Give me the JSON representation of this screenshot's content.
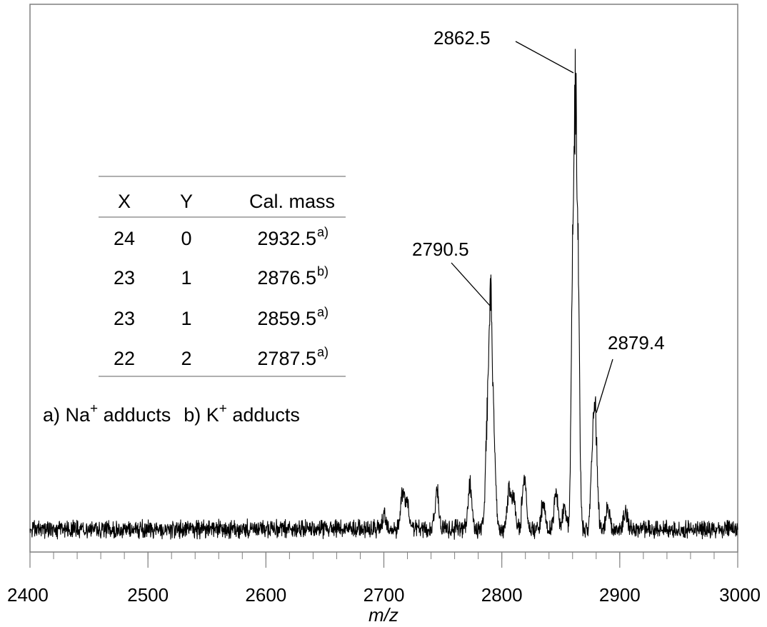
{
  "chart_data": {
    "type": "line",
    "xlabel": "m/z",
    "ylabel": "",
    "xlim": [
      2400,
      3000
    ],
    "x_ticks_major": [
      2400,
      2500,
      2600,
      2700,
      2800,
      2900,
      3000
    ],
    "x_minor_step": 20,
    "x_tick_labels": [
      "2400",
      "2500",
      "2600",
      "2700",
      "2800",
      "2900",
      "3000"
    ],
    "ylim": [
      0,
      100
    ],
    "grid": false,
    "baseline_level": 6,
    "noise_amplitude": 3,
    "series": [
      {
        "peaks": [
          {
            "x": 2700,
            "y": 4
          },
          {
            "x": 2716,
            "y": 10
          },
          {
            "x": 2720,
            "y": 6
          },
          {
            "x": 2745,
            "y": 9
          },
          {
            "x": 2773,
            "y": 11
          },
          {
            "x": 2790.5,
            "y": 47
          },
          {
            "x": 2788,
            "y": 30
          },
          {
            "x": 2793,
            "y": 25
          },
          {
            "x": 2806,
            "y": 9
          },
          {
            "x": 2810,
            "y": 8
          },
          {
            "x": 2819,
            "y": 14
          },
          {
            "x": 2835,
            "y": 7
          },
          {
            "x": 2846,
            "y": 9
          },
          {
            "x": 2853,
            "y": 6
          },
          {
            "x": 2862.5,
            "y": 100
          },
          {
            "x": 2860,
            "y": 60
          },
          {
            "x": 2865,
            "y": 55
          },
          {
            "x": 2879.4,
            "y": 23
          },
          {
            "x": 2877,
            "y": 18
          },
          {
            "x": 2890,
            "y": 6
          },
          {
            "x": 2905,
            "y": 4
          }
        ]
      }
    ],
    "annotations": [
      "2862.5",
      "2790.5",
      "2879.4"
    ]
  },
  "table": {
    "headers": [
      "X",
      "Y",
      "Cal. mass"
    ],
    "rows": [
      {
        "x": "24",
        "y": "0",
        "mass": "2932.5",
        "note": "a)"
      },
      {
        "x": "23",
        "y": "1",
        "mass": "2876.5",
        "note": "b)"
      },
      {
        "x": "23",
        "y": "1",
        "mass": "2859.5",
        "note": "a)"
      },
      {
        "x": "22",
        "y": "2",
        "mass": "2787.5",
        "note": "a)"
      }
    ]
  },
  "footnote": {
    "a_prefix": "a) Na",
    "a_sup": "+",
    "a_suffix": " adducts",
    "b_prefix": "b) K",
    "b_sup": "+",
    "b_suffix": " adducts"
  }
}
